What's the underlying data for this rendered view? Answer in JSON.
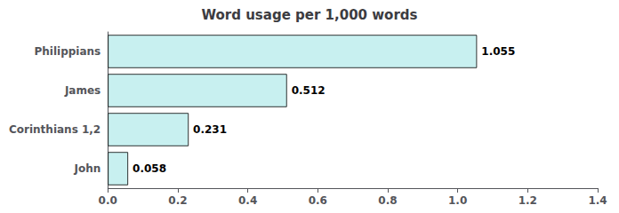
{
  "chart_data": {
    "type": "bar",
    "orientation": "horizontal",
    "title": "Word usage per 1,000 words",
    "categories": [
      "Philippians",
      "James",
      "Corinthians 1,2",
      "John"
    ],
    "values": [
      1.055,
      0.512,
      0.231,
      0.058
    ],
    "color": "#c8f0f0",
    "xlim": [
      0,
      1.4
    ],
    "xticks": [
      {
        "value": 0,
        "label": "0.0"
      },
      0.2,
      0.4,
      0.6,
      0.8,
      {
        "value": 1,
        "label": "1.0"
      },
      1.2,
      1.4
    ],
    "data_labels": true,
    "grid": false
  }
}
